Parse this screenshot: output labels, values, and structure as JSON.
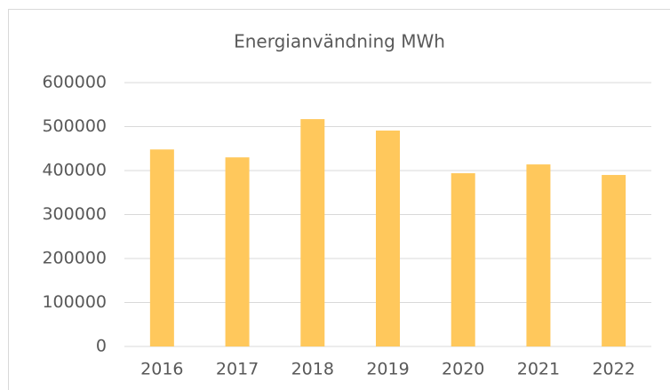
{
  "chart_data": {
    "type": "bar",
    "title": "Energianvändning MWh",
    "categories": [
      "2016",
      "2017",
      "2018",
      "2019",
      "2020",
      "2021",
      "2022"
    ],
    "values": [
      448000,
      430000,
      517000,
      491000,
      394000,
      414000,
      390000
    ],
    "color": "#ffc85c",
    "ylim": [
      0,
      600000
    ],
    "yticks": [
      0,
      100000,
      200000,
      300000,
      400000,
      500000,
      600000
    ],
    "grid": true
  }
}
